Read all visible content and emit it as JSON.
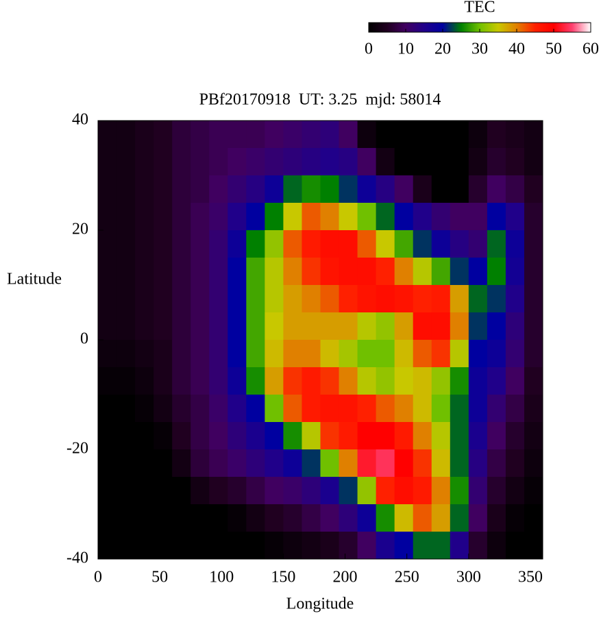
{
  "chart_data": {
    "type": "heatmap",
    "title": "PBf20170918  UT: 3.25  mjd: 58014",
    "x_label": "Longitude",
    "y_label": "Latitude",
    "xlim": [
      0,
      360
    ],
    "xticks": [
      0,
      50,
      100,
      150,
      200,
      250,
      300,
      350
    ],
    "ylim": [
      -40,
      40
    ],
    "yticks": [
      -40,
      -20,
      0,
      20,
      40
    ],
    "colorbar": {
      "title": "TEC",
      "lim": [
        0,
        60
      ],
      "ticks": [
        0,
        10,
        20,
        30,
        40,
        50,
        60
      ]
    },
    "colorscale": [
      [
        0,
        "#000000"
      ],
      [
        5,
        "#200020"
      ],
      [
        10,
        "#400060"
      ],
      [
        15,
        "#20008a"
      ],
      [
        20,
        "#0000a0"
      ],
      [
        25,
        "#008000"
      ],
      [
        30,
        "#70c000"
      ],
      [
        35,
        "#c8c800"
      ],
      [
        40,
        "#e08000"
      ],
      [
        45,
        "#ff2000"
      ],
      [
        50,
        "#ff0000"
      ],
      [
        55,
        "#ff4070"
      ],
      [
        60,
        "#ffffff"
      ]
    ],
    "values": [
      [
        3,
        3,
        4,
        5,
        7,
        8,
        9,
        9,
        9,
        10,
        11,
        12,
        13,
        10,
        2,
        0,
        0,
        0,
        0,
        0,
        2,
        5,
        4,
        3
      ],
      [
        3,
        3,
        4,
        5,
        7,
        8,
        9,
        10,
        11,
        12,
        13,
        14,
        15,
        14,
        10,
        3,
        0,
        0,
        0,
        0,
        3,
        6,
        5,
        3
      ],
      [
        3,
        3,
        4,
        5,
        7,
        8,
        10,
        12,
        14,
        18,
        24,
        26,
        25,
        22,
        18,
        14,
        10,
        4,
        0,
        0,
        6,
        10,
        8,
        5
      ],
      [
        3,
        3,
        4,
        5,
        7,
        9,
        11,
        15,
        20,
        25,
        35,
        42,
        40,
        35,
        30,
        24,
        20,
        15,
        12,
        10,
        10,
        20,
        15,
        6
      ],
      [
        3,
        3,
        4,
        5,
        7,
        9,
        12,
        18,
        25,
        32,
        42,
        46,
        48,
        48,
        42,
        35,
        28,
        22,
        18,
        14,
        12,
        24,
        18,
        6
      ],
      [
        3,
        3,
        4,
        5,
        7,
        9,
        12,
        20,
        28,
        34,
        40,
        44,
        47,
        48,
        48,
        45,
        40,
        34,
        28,
        22,
        20,
        25,
        17,
        6
      ],
      [
        3,
        3,
        4,
        5,
        7,
        9,
        12,
        20,
        28,
        34,
        38,
        40,
        42,
        45,
        47,
        48,
        47,
        45,
        46,
        38,
        24,
        22,
        15,
        6
      ],
      [
        3,
        3,
        4,
        5,
        7,
        9,
        12,
        20,
        28,
        35,
        38,
        38,
        38,
        38,
        34,
        32,
        38,
        48,
        48,
        40,
        22,
        20,
        13,
        6
      ],
      [
        2,
        2,
        3,
        4,
        7,
        9,
        12,
        20,
        28,
        36,
        40,
        40,
        36,
        33,
        30,
        30,
        36,
        42,
        44,
        34,
        20,
        18,
        12,
        6
      ],
      [
        1,
        1,
        2,
        4,
        7,
        9,
        12,
        18,
        26,
        38,
        44,
        46,
        44,
        40,
        34,
        32,
        35,
        36,
        32,
        26,
        18,
        15,
        10,
        5
      ],
      [
        0,
        0,
        1,
        3,
        6,
        8,
        11,
        15,
        20,
        30,
        42,
        46,
        47,
        47,
        45,
        42,
        40,
        36,
        30,
        24,
        18,
        12,
        8,
        4
      ],
      [
        0,
        0,
        0,
        1,
        5,
        8,
        10,
        13,
        16,
        20,
        26,
        34,
        44,
        46,
        50,
        50,
        46,
        40,
        34,
        24,
        16,
        10,
        6,
        3
      ],
      [
        0,
        0,
        0,
        0,
        3,
        7,
        9,
        11,
        13,
        15,
        18,
        22,
        30,
        40,
        52,
        54,
        50,
        44,
        36,
        24,
        14,
        8,
        5,
        2
      ],
      [
        0,
        0,
        0,
        0,
        0,
        3,
        5,
        6,
        8,
        10,
        11,
        13,
        16,
        22,
        32,
        45,
        48,
        46,
        40,
        26,
        12,
        6,
        3,
        1
      ],
      [
        0,
        0,
        0,
        0,
        0,
        0,
        0,
        1,
        3,
        5,
        6,
        8,
        10,
        13,
        18,
        26,
        36,
        42,
        38,
        24,
        10,
        4,
        1,
        0
      ],
      [
        0,
        0,
        0,
        0,
        0,
        0,
        0,
        0,
        0,
        1,
        2,
        3,
        4,
        6,
        10,
        16,
        20,
        24,
        24,
        15,
        6,
        2,
        0,
        0
      ]
    ]
  }
}
